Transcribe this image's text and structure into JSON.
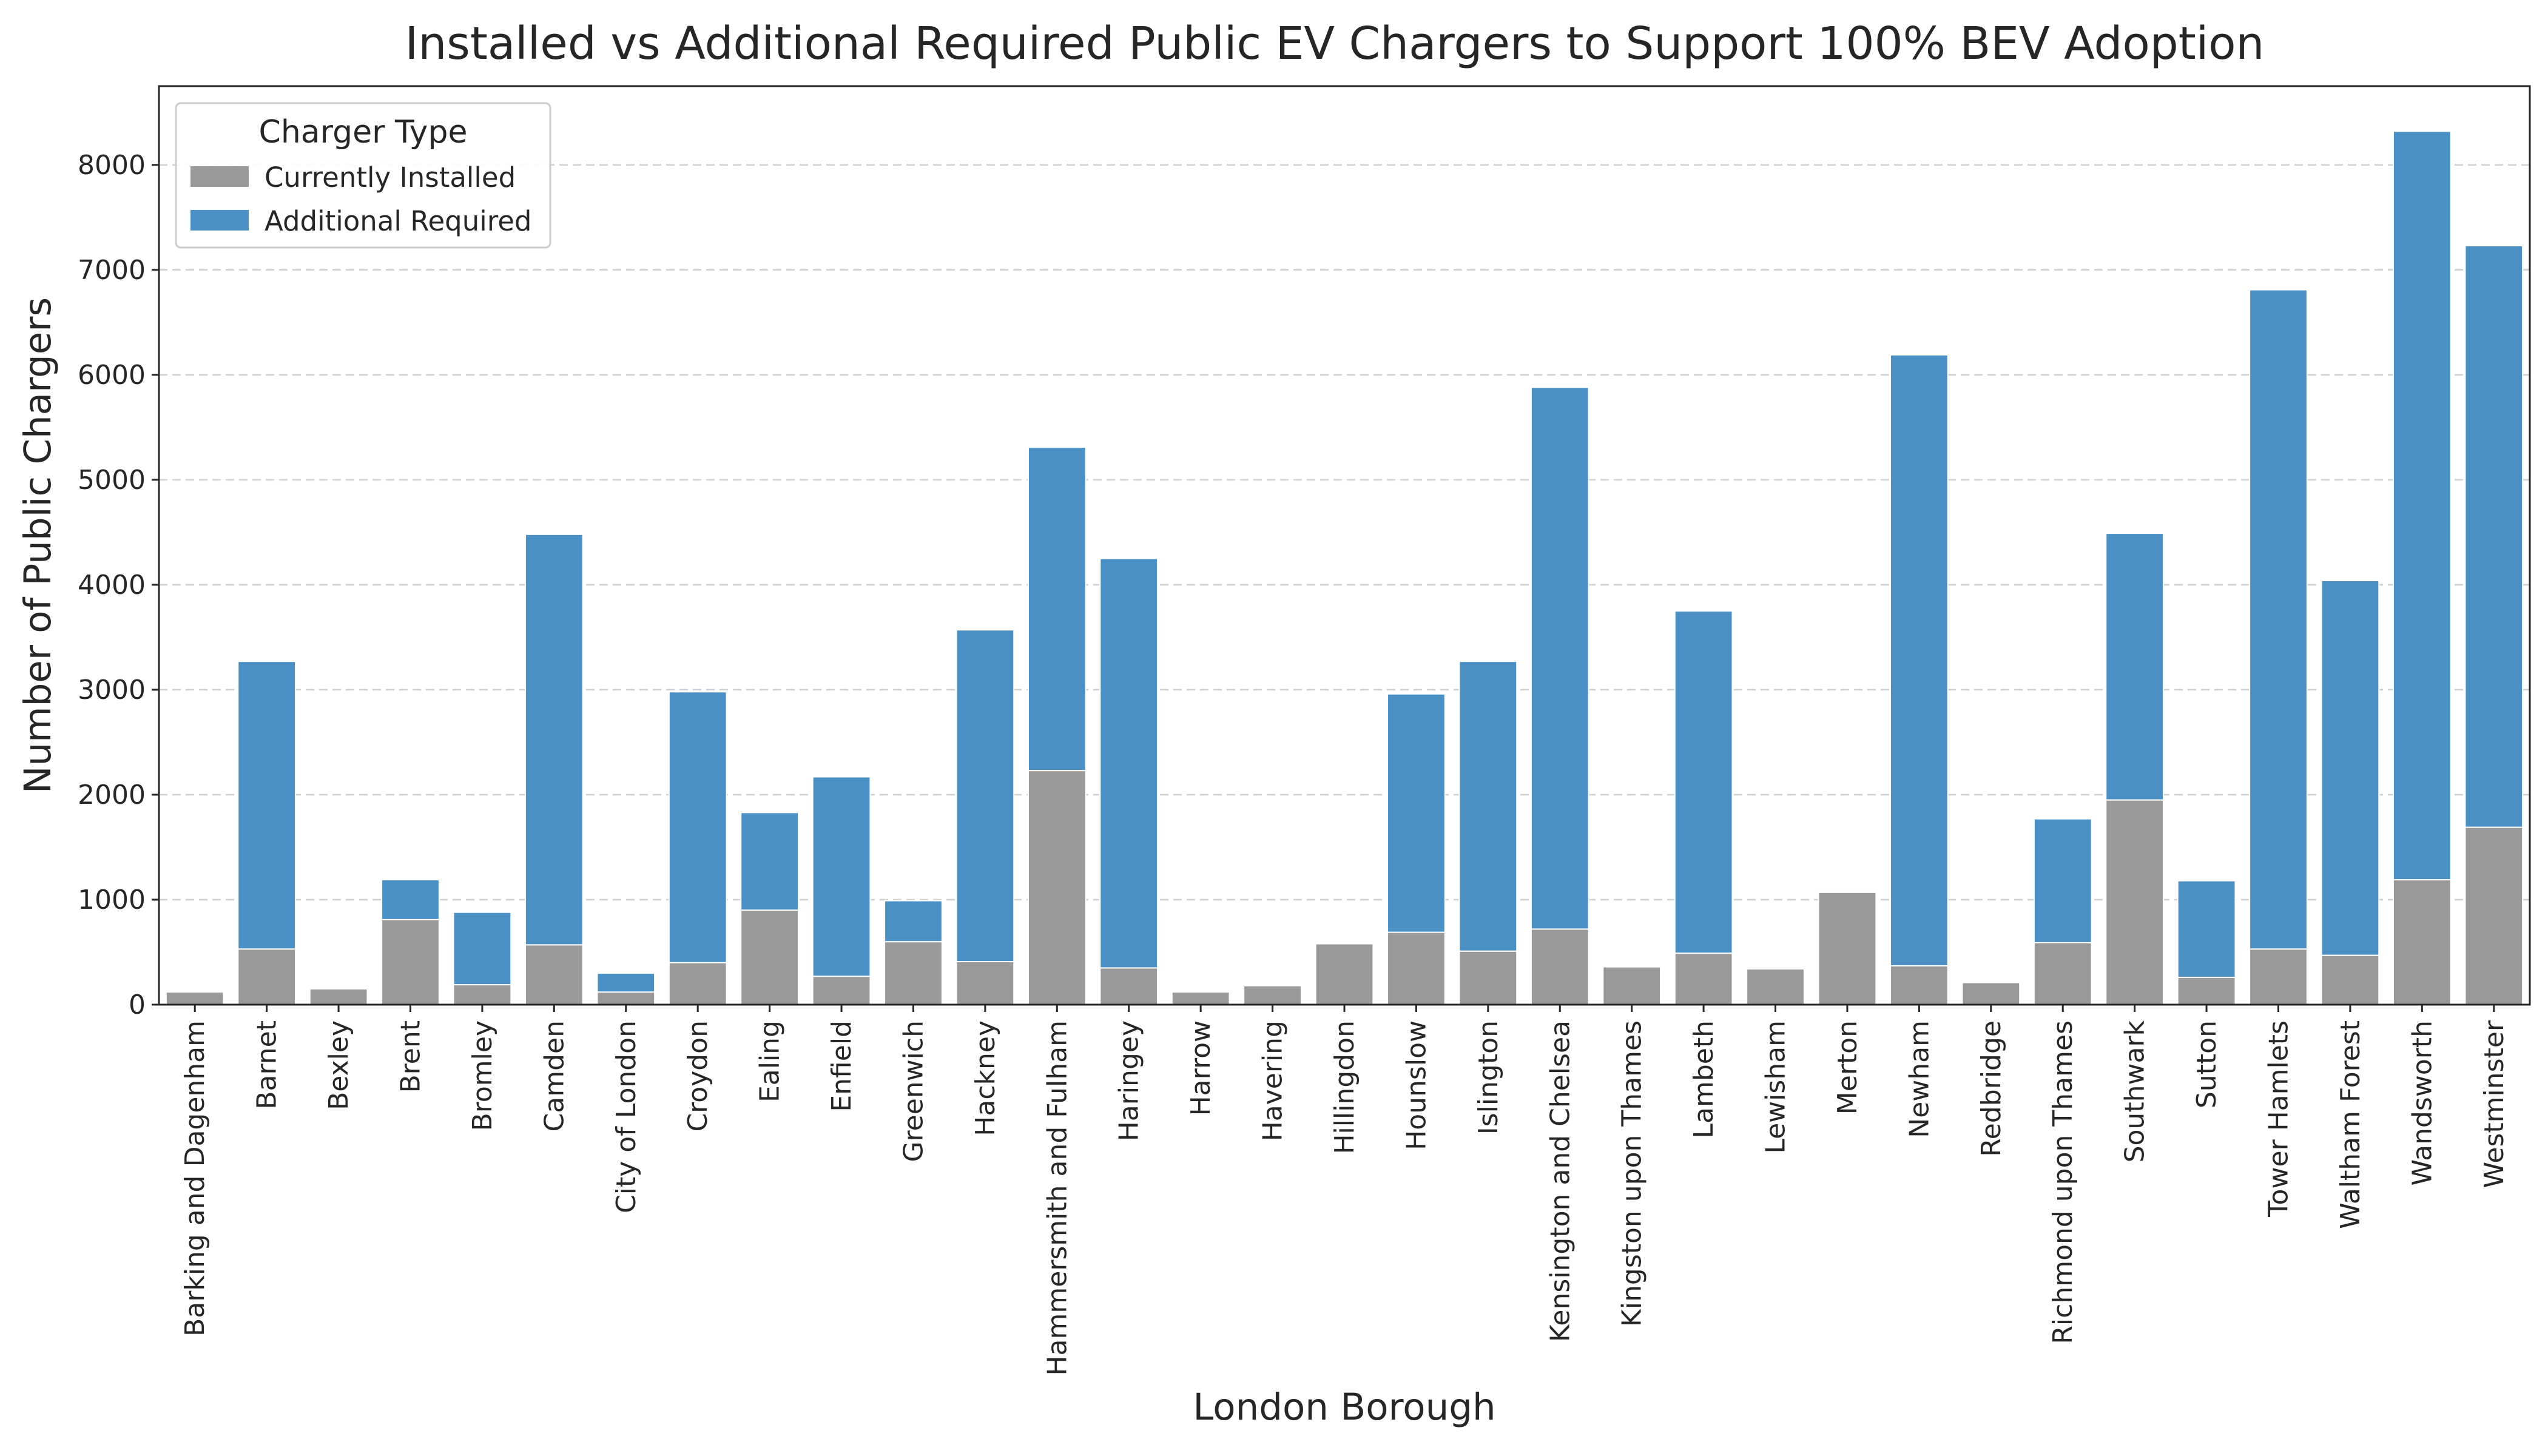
{
  "chart_data": {
    "type": "bar",
    "stacked": true,
    "title": "Installed vs Additional Required Public EV Chargers to Support 100% BEV Adoption",
    "xlabel": "London Borough",
    "ylabel": "Number of Public Chargers",
    "ylim": [
      0,
      8750
    ],
    "yticks": [
      0,
      1000,
      2000,
      3000,
      4000,
      5000,
      6000,
      7000,
      8000
    ],
    "grid": "y-dashed",
    "legend": {
      "title": "Charger Type",
      "placement": "top-left"
    },
    "categories": [
      "Barking and Dagenham",
      "Barnet",
      "Bexley",
      "Brent",
      "Bromley",
      "Camden",
      "City of London",
      "Croydon",
      "Ealing",
      "Enfield",
      "Greenwich",
      "Hackney",
      "Hammersmith and Fulham",
      "Haringey",
      "Harrow",
      "Havering",
      "Hillingdon",
      "Hounslow",
      "Islington",
      "Kensington and Chelsea",
      "Kingston upon Thames",
      "Lambeth",
      "Lewisham",
      "Merton",
      "Newham",
      "Redbridge",
      "Richmond upon Thames",
      "Southwark",
      "Sutton",
      "Tower Hamlets",
      "Waltham Forest",
      "Wandsworth",
      "Westminster"
    ],
    "series": [
      {
        "name": "Currently Installed",
        "color": "#999999",
        "values": [
          120,
          530,
          150,
          810,
          190,
          570,
          120,
          400,
          900,
          270,
          600,
          410,
          2230,
          350,
          120,
          180,
          580,
          690,
          510,
          720,
          360,
          490,
          340,
          1070,
          370,
          210,
          590,
          1950,
          260,
          530,
          470,
          1190,
          1690
        ]
      },
      {
        "name": "Additional Required",
        "color": "#4a90c4",
        "values": [
          0,
          2740,
          0,
          380,
          690,
          3910,
          180,
          2580,
          930,
          1900,
          390,
          3160,
          3080,
          3900,
          0,
          0,
          0,
          2270,
          2760,
          5160,
          0,
          3260,
          0,
          0,
          5820,
          0,
          1180,
          2540,
          920,
          6280,
          3570,
          7130,
          5540
        ]
      }
    ]
  }
}
